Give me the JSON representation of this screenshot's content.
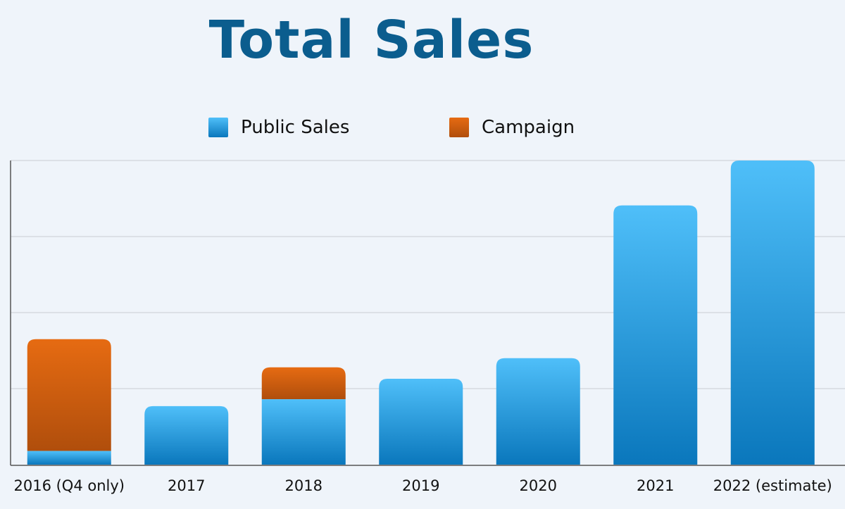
{
  "chart_data": {
    "type": "bar",
    "stacked": true,
    "title": "Total Sales",
    "xlabel": "",
    "ylabel": "",
    "ylim": [
      0,
      4
    ],
    "grid": true,
    "legend_position": "top-center",
    "categories": [
      "2016 (Q4 only)",
      "2017",
      "2018",
      "2019",
      "2020",
      "2021",
      "2022 (estimate)"
    ],
    "series": [
      {
        "name": "Public Sales",
        "values": [
          0.18,
          0.77,
          0.86,
          1.13,
          1.4,
          3.41,
          4.0
        ],
        "color_top": "#4fbff9",
        "color_bottom": "#0a77bc"
      },
      {
        "name": "Campaign",
        "values": [
          1.47,
          0,
          0.42,
          0,
          0,
          0,
          0
        ],
        "color_top": "#e66b12",
        "color_bottom": "#b04e0c"
      }
    ]
  }
}
